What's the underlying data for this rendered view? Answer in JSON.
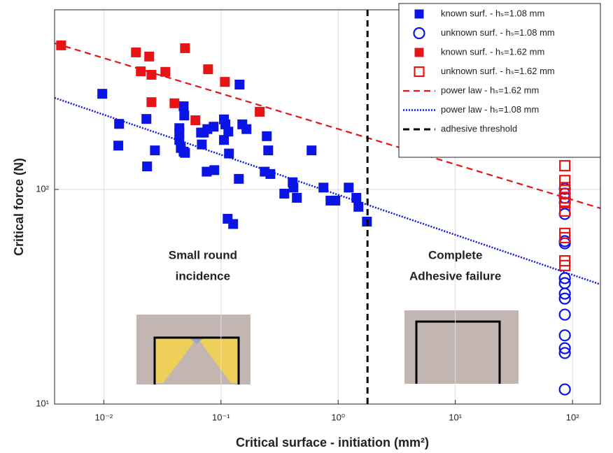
{
  "chart_data": {
    "type": "scatter",
    "xlabel": "Critical surface - initiation (mm²)",
    "ylabel": "Critical force (N)",
    "xscale": "log",
    "yscale": "log",
    "grid": true,
    "legend": "upper right",
    "xlim": [
      0.0038,
      173
    ],
    "ylim": [
      10,
      687
    ],
    "xticks": [
      {
        "value": 0.01,
        "label": "10⁻²"
      },
      {
        "value": 0.1,
        "label": "10⁻¹"
      },
      {
        "value": 1,
        "label": "10⁰"
      },
      {
        "value": 10,
        "label": "10¹"
      },
      {
        "value": 100,
        "label": "10²"
      }
    ],
    "yticks": [
      {
        "value": 10,
        "label": "10¹"
      },
      {
        "value": 100,
        "label": "10²"
      }
    ],
    "annotations": [
      {
        "lines": [
          "Small round",
          "incidence"
        ],
        "x": 0.07,
        "y": 49
      },
      {
        "lines": [
          "Complete",
          "Adhesive failure"
        ],
        "x": 10,
        "y": 49
      }
    ],
    "series": [
      {
        "name": "known surf. - hₛ=1.08 mm",
        "color": "#0a14e6",
        "marker": "filled-square",
        "x": [
          0.0097,
          0.0135,
          0.0133,
          0.0231,
          0.0234,
          0.0273,
          0.0441,
          0.048,
          0.0486,
          0.0441,
          0.0441,
          0.0454,
          0.0493,
          0.048,
          0.0686,
          0.0676,
          0.0714,
          0.0765,
          0.0866,
          0.106,
          0.1155,
          0.109,
          0.106,
          0.117,
          0.0755,
          0.0877,
          0.144,
          0.152,
          0.165,
          0.142,
          0.114,
          0.127,
          0.246,
          0.253,
          0.236,
          0.264,
          0.347,
          0.409,
          0.415,
          0.444,
          0.749,
          0.86,
          0.946,
          1.23,
          1.43,
          1.49,
          1.76,
          0.593
        ],
        "values": [
          279,
          202,
          160,
          213,
          128,
          152,
          193,
          244,
          221,
          184,
          170,
          156,
          148,
          150,
          162,
          184,
          184,
          191,
          196,
          212,
          186,
          201,
          170,
          147,
          121,
          123,
          308,
          201,
          191,
          112,
          73,
          69,
          177,
          152,
          121,
          118,
          95.6,
          108,
          102,
          91.4,
          102,
          88.7,
          88.7,
          102,
          91.4,
          83,
          70.8,
          152
        ]
      },
      {
        "name": "unknown surf. - hₛ=1.08 mm",
        "color": "#0a14e6",
        "marker": "open-circle",
        "x": [
          86,
          86,
          86,
          86,
          86,
          86,
          86,
          86,
          86,
          86,
          86,
          86,
          86,
          86,
          86,
          86
        ],
        "values": [
          100.7,
          95.6,
          91.4,
          86.7,
          76.9,
          57.4,
          56.1,
          38.6,
          36.6,
          32.7,
          31.0,
          26.1,
          20.9,
          18.2,
          17.3,
          11.7
        ]
      },
      {
        "name": "known surf. - hₛ=1.62 mm",
        "color": "#e61414",
        "marker": "filled-square",
        "x": [
          0.00432,
          0.0188,
          0.0244,
          0.0207,
          0.0255,
          0.0335,
          0.0493,
          0.0776,
          0.108,
          0.0401,
          0.0255,
          0.0605,
          0.214
        ],
        "values": [
          469,
          435,
          416,
          355,
          342,
          353,
          455,
          363,
          317,
          252,
          255,
          210,
          230
        ]
      },
      {
        "name": "unknown surf. - hₛ=1.62 mm",
        "color": "#e61414",
        "marker": "open-square",
        "x": [
          86,
          86,
          86,
          86,
          86,
          86,
          86,
          86,
          86,
          86,
          86
        ],
        "values": [
          129,
          110,
          102,
          95.6,
          91.4,
          86.7,
          79.3,
          62.4,
          59.6,
          46.5,
          44.2
        ]
      },
      {
        "name": "power law - hₛ=1.62 mm",
        "color": "#e61414",
        "line": "dashed",
        "line_width": 2.2,
        "x": [
          0.0038,
          173
        ],
        "values": [
          480,
          81.7
        ]
      },
      {
        "name": "power law - hₛ=1.08 mm",
        "color": "#0a14e6",
        "line": "dotted",
        "line_width": 2.5,
        "x": [
          0.0038,
          173
        ],
        "values": [
          267,
          36.1
        ]
      },
      {
        "name": "adhesive threshold",
        "color": "#000000",
        "line": "dashed",
        "line_width": 3,
        "x": [
          1.78,
          1.78
        ],
        "values": [
          10,
          687
        ]
      }
    ]
  }
}
